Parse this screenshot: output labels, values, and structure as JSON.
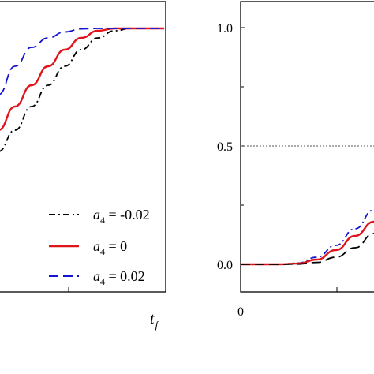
{
  "chart_data": [
    {
      "type": "line",
      "panel": "left",
      "title": "",
      "xlabel": "t_f",
      "xlabel_var": "t",
      "xlabel_sub": "f",
      "ylabel": "",
      "grid": false,
      "legend_placement": "bottom-right",
      "series": [
        {
          "name": "a4 = -0.02",
          "legend_var": "a",
          "legend_sub": "4",
          "legend_rest": " = -0.02",
          "style": "dash-dot",
          "color": "#000000",
          "x": [
            0.0,
            0.1,
            0.2,
            0.3,
            0.4,
            0.5,
            0.6,
            0.7,
            0.8,
            1.0
          ],
          "y": [
            0.48,
            0.57,
            0.67,
            0.76,
            0.84,
            0.91,
            0.96,
            0.99,
            1.0,
            1.0
          ]
        },
        {
          "name": "a4 = 0",
          "legend_var": "a",
          "legend_sub": "4",
          "legend_rest": " = 0",
          "style": "solid",
          "color": "#e0141b",
          "x": [
            0.0,
            0.1,
            0.2,
            0.3,
            0.4,
            0.5,
            0.6,
            0.7,
            0.8,
            1.0
          ],
          "y": [
            0.57,
            0.67,
            0.76,
            0.84,
            0.91,
            0.96,
            0.99,
            1.0,
            1.0,
            1.0
          ]
        },
        {
          "name": "a4 = 0.02",
          "legend_var": "a",
          "legend_sub": "4",
          "legend_rest": " = 0.02",
          "style": "dashed",
          "color": "#1414d2",
          "x": [
            0.0,
            0.1,
            0.2,
            0.3,
            0.4,
            0.5,
            0.6,
            0.7,
            0.8,
            1.0
          ],
          "y": [
            0.72,
            0.84,
            0.92,
            0.96,
            0.985,
            0.998,
            1.0,
            1.0,
            1.0,
            1.0
          ]
        }
      ],
      "xlim": [
        0,
        1
      ],
      "ylim": [
        -0.05,
        1.1
      ]
    },
    {
      "type": "line",
      "panel": "right",
      "title": "",
      "xlabel": "",
      "ylabel": "",
      "grid": false,
      "reference_line": {
        "y": 0.5,
        "style": "dotted"
      },
      "x_tick_labels": [
        "0"
      ],
      "y_tick_labels": [
        "0.0",
        "0.5",
        "1.0"
      ],
      "y_ticks": [
        0.0,
        0.5,
        1.0
      ],
      "xlim": [
        0,
        1
      ],
      "ylim": [
        -0.1,
        1.1
      ],
      "series": [
        {
          "name": "",
          "style": "dash-dot",
          "color": "#1414d2",
          "x": [
            0.0,
            0.1,
            0.2,
            0.3,
            0.4,
            0.5,
            0.6,
            0.7
          ],
          "y": [
            0.0,
            0.0,
            0.0,
            0.005,
            0.03,
            0.08,
            0.15,
            0.23
          ]
        },
        {
          "name": "",
          "style": "solid",
          "color": "#e0141b",
          "x": [
            0.0,
            0.1,
            0.2,
            0.3,
            0.4,
            0.5,
            0.6,
            0.7
          ],
          "y": [
            0.0,
            0.0,
            0.0,
            0.003,
            0.02,
            0.06,
            0.12,
            0.18
          ]
        },
        {
          "name": "",
          "style": "dashed",
          "color": "#000000",
          "x": [
            0.0,
            0.1,
            0.2,
            0.3,
            0.4,
            0.5,
            0.6,
            0.7
          ],
          "y": [
            0.0,
            0.0,
            0.0,
            0.001,
            0.008,
            0.03,
            0.07,
            0.13
          ]
        }
      ]
    }
  ]
}
